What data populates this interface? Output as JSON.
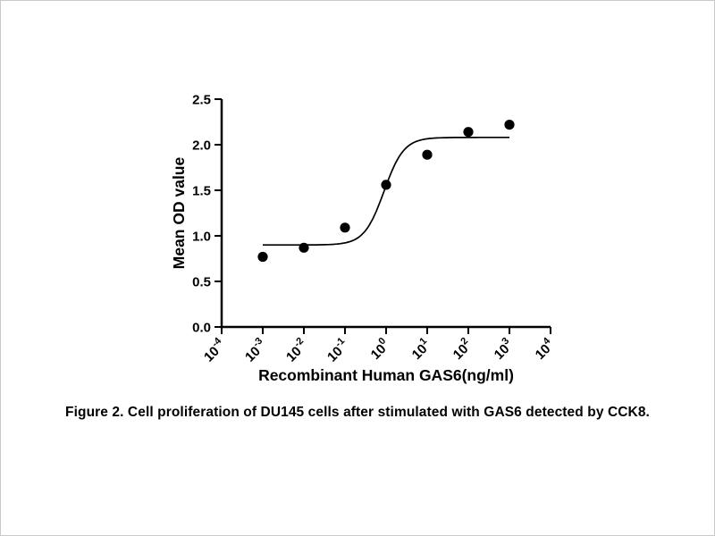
{
  "colors": {
    "ink": "#000000",
    "background": "#ffffff",
    "frame": "#c9c9c9"
  },
  "chart_data": {
    "type": "scatter",
    "title": "",
    "xlabel": "Recombinant Human GAS6(ng/ml)",
    "ylabel": "Mean OD value",
    "x_scale": "log10",
    "xlim_log10": [
      -4,
      4
    ],
    "ylim": [
      0,
      2.5
    ],
    "x_ticks_exponents": [
      -4,
      -3,
      -2,
      -1,
      0,
      1,
      2,
      3,
      4
    ],
    "x_tick_base": "10",
    "y_ticks": [
      {
        "value": 0.0,
        "label": "0.0"
      },
      {
        "value": 0.5,
        "label": "0.5"
      },
      {
        "value": 1.0,
        "label": "1.0"
      },
      {
        "value": 1.5,
        "label": "1.5"
      },
      {
        "value": 2.0,
        "label": "2.0"
      },
      {
        "value": 2.5,
        "label": "2.5"
      }
    ],
    "points": [
      {
        "x": 0.001,
        "y": 0.77
      },
      {
        "x": 0.01,
        "y": 0.87
      },
      {
        "x": 0.1,
        "y": 1.09
      },
      {
        "x": 1,
        "y": 1.56
      },
      {
        "x": 10,
        "y": 1.89
      },
      {
        "x": 100,
        "y": 2.14
      },
      {
        "x": 1000,
        "y": 2.22
      }
    ],
    "fit_curve": {
      "model": "4PL-sigmoid",
      "bottom": 0.9,
      "top": 2.08,
      "log10_ec50": -0.05,
      "hill": 1.8,
      "x_log10_start": -3,
      "x_log10_end": 3
    },
    "grid": false,
    "legend": "none"
  },
  "caption": "Figure 2. Cell proliferation of DU145 cells after stimulated with GAS6 detected by CCK8."
}
